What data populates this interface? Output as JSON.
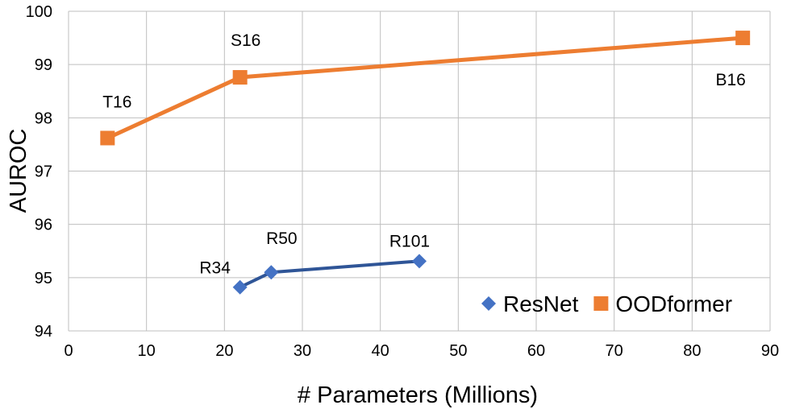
{
  "chart_data": {
    "type": "line",
    "xlabel": "# Parameters (Millions)",
    "ylabel": "AUROC",
    "xlim": [
      0,
      90
    ],
    "ylim": [
      94,
      100
    ],
    "xticks": [
      "0",
      "10",
      "20",
      "30",
      "40",
      "50",
      "60",
      "70",
      "80",
      "90"
    ],
    "yticks": [
      "94",
      "95",
      "96",
      "97",
      "98",
      "99",
      "100"
    ],
    "grid": true,
    "legend_position": "bottom-right",
    "series": [
      {
        "name": "ResNet",
        "color": "#4472C4",
        "line_color": "#2F5597",
        "marker": "diamond",
        "points": [
          {
            "x": 22,
            "y": 94.82,
            "label": "R34"
          },
          {
            "x": 26,
            "y": 95.1,
            "label": "R50"
          },
          {
            "x": 45,
            "y": 95.31,
            "label": "R101"
          }
        ]
      },
      {
        "name": "OODformer",
        "color": "#ED7D31",
        "line_color": "#ED7D31",
        "marker": "square",
        "points": [
          {
            "x": 5,
            "y": 97.62,
            "label": "T16"
          },
          {
            "x": 22,
            "y": 98.76,
            "label": "S16"
          },
          {
            "x": 86.5,
            "y": 99.5,
            "label": "B16"
          }
        ]
      }
    ]
  }
}
